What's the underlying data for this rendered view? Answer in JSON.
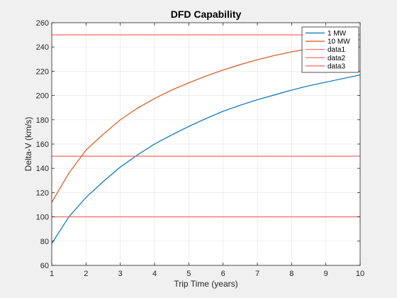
{
  "chart_data": {
    "type": "line",
    "title": "DFD Capability",
    "xlabel": "Trip Time (years)",
    "ylabel": "Delta-V (km/s)",
    "xlim": [
      1,
      10
    ],
    "ylim": [
      60,
      260
    ],
    "xticks": [
      1,
      2,
      3,
      4,
      5,
      6,
      7,
      8,
      9,
      10
    ],
    "yticks": [
      60,
      80,
      100,
      120,
      140,
      160,
      180,
      200,
      220,
      240,
      260
    ],
    "grid": true,
    "legend_position": "top-right",
    "series": [
      {
        "name": "1 MW",
        "color": "#0072bd",
        "x": [
          1,
          1.5,
          2,
          2.5,
          3,
          3.5,
          4,
          4.5,
          5,
          5.5,
          6,
          6.5,
          7,
          7.5,
          8,
          8.5,
          9,
          9.5,
          10
        ],
        "y": [
          78,
          100,
          116,
          129,
          141,
          151,
          160,
          167.5,
          174.5,
          181,
          187,
          192,
          196.5,
          200.5,
          204.5,
          208,
          211,
          214,
          217
        ]
      },
      {
        "name": "10 MW",
        "color": "#d95319",
        "x": [
          1,
          1.5,
          2,
          2.5,
          3,
          3.5,
          4,
          4.5,
          5,
          5.5,
          6,
          6.5,
          7,
          7.5,
          8,
          8.5,
          9,
          9.5,
          10
        ],
        "y": [
          112,
          136,
          155,
          168,
          180,
          189.5,
          197.5,
          204.5,
          210.5,
          216,
          221,
          225.5,
          229.5,
          233,
          236,
          238.5,
          241,
          243.5,
          246
        ]
      },
      {
        "name": "data1",
        "color": "#ff6666",
        "x": [
          1,
          10
        ],
        "y": [
          100,
          100
        ]
      },
      {
        "name": "data2",
        "color": "#ff6666",
        "x": [
          1,
          10
        ],
        "y": [
          150,
          150
        ]
      },
      {
        "name": "data3",
        "color": "#ff6666",
        "x": [
          1,
          10
        ],
        "y": [
          250,
          250
        ]
      }
    ]
  }
}
